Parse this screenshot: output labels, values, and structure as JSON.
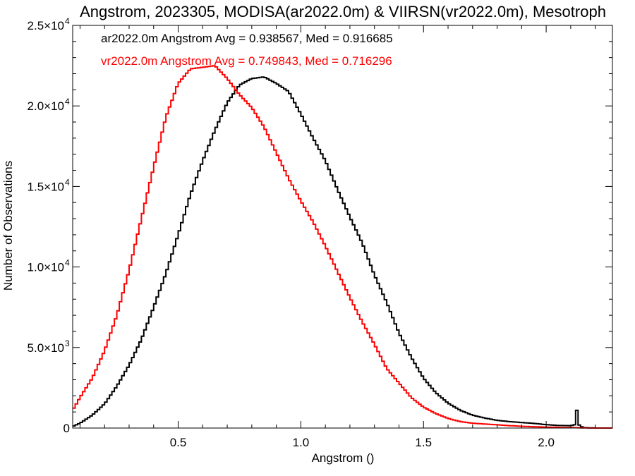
{
  "chart_data": {
    "type": "line",
    "title": "Angstrom, 2023305, MODISA(ar2022.0m) & VIIRSN(vr2022.0m), Mesotroph",
    "xlabel": "Angstrom ()",
    "ylabel": "Number of Observations",
    "xlim": [
      0.07,
      2.27
    ],
    "ylim": [
      0,
      25000
    ],
    "x_ticks": [
      {
        "value": 0.5,
        "label": "0.5"
      },
      {
        "value": 1.0,
        "label": "1.0"
      },
      {
        "value": 1.5,
        "label": "1.5"
      },
      {
        "value": 2.0,
        "label": "2.0"
      }
    ],
    "y_ticks": [
      {
        "value": 0,
        "label": "0",
        "exp": ""
      },
      {
        "value": 5000,
        "label": "5.0×10",
        "exp": "3"
      },
      {
        "value": 10000,
        "label": "1.0×10",
        "exp": "4"
      },
      {
        "value": 15000,
        "label": "1.5×10",
        "exp": "4"
      },
      {
        "value": 20000,
        "label": "2.0×10",
        "exp": "4"
      },
      {
        "value": 25000,
        "label": "2.5×10",
        "exp": "4"
      }
    ],
    "legend_placement": "top-left",
    "annotations": [
      {
        "text": "ar2022.0m Angstrom Avg = 0.938567, Med = 0.916685",
        "color": "#000000"
      },
      {
        "text": "vr2022.0m Angstrom Avg = 0.749843, Med = 0.716296",
        "color": "#ff0000"
      }
    ],
    "series": [
      {
        "name": "ar2022.0m",
        "color": "#000000",
        "x": [
          0.07,
          0.1,
          0.15,
          0.2,
          0.25,
          0.3,
          0.35,
          0.4,
          0.45,
          0.5,
          0.55,
          0.6,
          0.65,
          0.7,
          0.75,
          0.8,
          0.85,
          0.9,
          0.95,
          1.0,
          1.05,
          1.1,
          1.15,
          1.2,
          1.25,
          1.3,
          1.35,
          1.4,
          1.45,
          1.5,
          1.55,
          1.6,
          1.65,
          1.7,
          1.75,
          1.8,
          1.85,
          1.9,
          1.95,
          2.0,
          2.05,
          2.1,
          2.12,
          2.125,
          2.13,
          2.14,
          2.15,
          2.2,
          2.27
        ],
        "y": [
          100,
          300,
          800,
          1500,
          2600,
          3900,
          5500,
          7500,
          9600,
          12000,
          14500,
          16600,
          18500,
          20200,
          21300,
          21700,
          21800,
          21400,
          20900,
          19500,
          18000,
          16600,
          14800,
          13100,
          11500,
          9500,
          7800,
          5900,
          4400,
          3100,
          2200,
          1550,
          1100,
          800,
          620,
          480,
          400,
          340,
          290,
          210,
          160,
          150,
          220,
          1100,
          250,
          120,
          30,
          0,
          0
        ]
      },
      {
        "name": "vr2022.0m",
        "color": "#ff0000",
        "x": [
          0.07,
          0.1,
          0.15,
          0.2,
          0.25,
          0.3,
          0.35,
          0.4,
          0.45,
          0.5,
          0.55,
          0.6,
          0.65,
          0.7,
          0.75,
          0.8,
          0.85,
          0.9,
          0.95,
          1.0,
          1.05,
          1.1,
          1.15,
          1.2,
          1.25,
          1.3,
          1.35,
          1.4,
          1.45,
          1.5,
          1.55,
          1.6,
          1.65,
          1.7,
          1.75,
          1.8,
          1.85,
          1.9,
          1.95,
          2.0,
          2.05,
          2.1,
          2.15,
          2.2,
          2.27
        ],
        "y": [
          1100,
          1900,
          3100,
          4800,
          7000,
          9800,
          13000,
          16200,
          19300,
          21400,
          22300,
          22400,
          22500,
          21700,
          20700,
          19900,
          18700,
          17100,
          15500,
          14100,
          12800,
          11300,
          9700,
          8100,
          6600,
          5200,
          3700,
          2800,
          1900,
          1300,
          900,
          600,
          400,
          300,
          250,
          200,
          150,
          110,
          80,
          60,
          40,
          30,
          10,
          0,
          0
        ]
      }
    ]
  }
}
